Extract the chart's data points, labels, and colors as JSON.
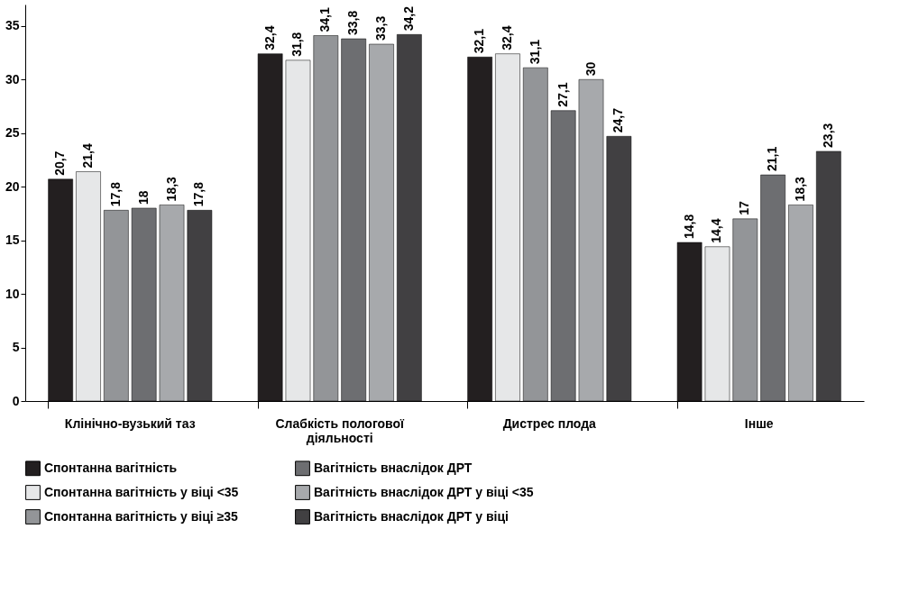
{
  "chart_data": {
    "type": "bar",
    "categories": [
      "Клінічно-вузький таз",
      "Слабкість пологової діяльності",
      "Дистрес плода",
      "Інше"
    ],
    "series": [
      {
        "name": "Спонтанна вагітність",
        "color": "#231f20",
        "values": [
          20.7,
          32.4,
          32.1,
          14.8
        ],
        "value_labels": [
          "20,7",
          "32,4",
          "32,1",
          "14,8"
        ]
      },
      {
        "name": "Спонтанна вагітність у віці <35",
        "color": "#e6e7e8",
        "values": [
          21.4,
          31.8,
          32.4,
          14.4
        ],
        "value_labels": [
          "21,4",
          "31,8",
          "32,4",
          "14,4"
        ]
      },
      {
        "name": "Спонтанна вагітність у віці ≥35",
        "color": "#939598",
        "values": [
          17.8,
          34.1,
          31.1,
          17
        ],
        "value_labels": [
          "17,8",
          "34,1",
          "31,1",
          "17"
        ]
      },
      {
        "name": "Вагітність внаслідок ДРТ",
        "color": "#6d6e71",
        "values": [
          18,
          33.8,
          27.1,
          21.1
        ],
        "value_labels": [
          "18",
          "33,8",
          "27,1",
          "21,1"
        ]
      },
      {
        "name": "Вагітність внаслідок ДРТ у віці <35",
        "color": "#a7a9ac",
        "values": [
          18.3,
          33.3,
          30,
          18.3
        ],
        "value_labels": [
          "18,3",
          "33,3",
          "30",
          "18,3"
        ]
      },
      {
        "name": "Вагітність внаслідок ДРТ у віці",
        "color": "#414042",
        "values": [
          17.8,
          34.2,
          24.7,
          23.3
        ],
        "value_labels": [
          "17,8",
          "34,2",
          "24,7",
          "23,3"
        ]
      }
    ],
    "ylim": [
      0,
      37
    ],
    "yticks": [
      0,
      5,
      10,
      15,
      20,
      25,
      30,
      35
    ],
    "grid": false,
    "legend": "bottom"
  }
}
